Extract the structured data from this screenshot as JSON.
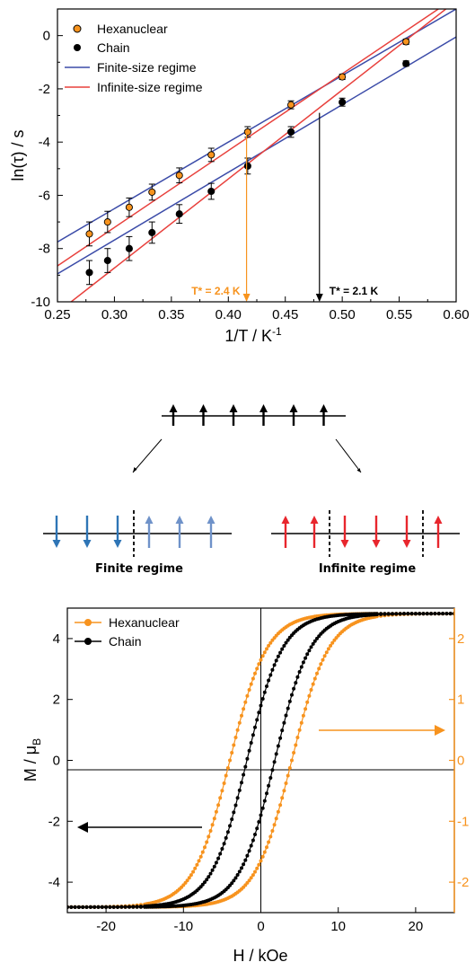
{
  "chart_data": [
    {
      "type": "scatter",
      "xlabel": "1/T / K",
      "xlabel_sup": "-1",
      "ylabel": "ln(τ) / s",
      "xlim": [
        0.25,
        0.6
      ],
      "ylim": [
        -10,
        1
      ],
      "xticks": [
        "0.25",
        "0.30",
        "0.35",
        "0.40",
        "0.45",
        "0.50",
        "0.55",
        "0.60"
      ],
      "yticks": [
        "-10",
        "-8",
        "-6",
        "-4",
        "-2",
        "0"
      ],
      "series": [
        {
          "name": "Hexanuclear",
          "color": "#f7931e",
          "x": [
            0.278,
            0.294,
            0.313,
            0.333,
            0.357,
            0.385,
            0.417,
            0.455,
            0.5,
            0.556
          ],
          "y": [
            -7.45,
            -7.0,
            -6.45,
            -5.88,
            -5.25,
            -4.48,
            -3.62,
            -2.6,
            -1.55,
            -0.23
          ],
          "err": [
            0.45,
            0.4,
            0.35,
            0.3,
            0.28,
            0.25,
            0.2,
            0.15,
            0.1,
            0.1
          ]
        },
        {
          "name": "Chain",
          "color": "#000000",
          "x": [
            0.278,
            0.294,
            0.313,
            0.333,
            0.357,
            0.385,
            0.417,
            0.455,
            0.5,
            0.556
          ],
          "y": [
            -8.9,
            -8.45,
            -8.0,
            -7.4,
            -6.7,
            -5.85,
            -4.9,
            -3.62,
            -2.5,
            -1.05
          ],
          "err": [
            0.45,
            0.45,
            0.45,
            0.4,
            0.35,
            0.3,
            0.3,
            0.2,
            0.15,
            0.1
          ]
        }
      ],
      "fits": [
        {
          "name": "Finite-size regime",
          "color": "#3b4ba8",
          "lines": [
            {
              "x": [
                0.25,
                0.6
              ],
              "y": [
                -7.75,
                1.0
              ]
            },
            {
              "x": [
                0.25,
                0.6
              ],
              "y": [
                -8.95,
                -0.05
              ]
            }
          ]
        },
        {
          "name": "Infinite-size regime",
          "color": "#e8403c",
          "lines": [
            {
              "x": [
                0.25,
                0.6
              ],
              "y": [
                -8.65,
                1.45
              ]
            },
            {
              "x": [
                0.25,
                0.6
              ],
              "y": [
                -10.4,
                1.3
              ]
            }
          ]
        }
      ],
      "annotations": [
        {
          "text": "T* = 2.4 K",
          "x": 0.416,
          "color": "#f7931e"
        },
        {
          "text": "T* = 2.1 K",
          "x": 0.48,
          "color": "#000000"
        }
      ]
    },
    {
      "type": "line",
      "xlabel": "H / kOe",
      "ylabel": "M / μ",
      "ylabel_sub": "B",
      "xlim": [
        -25,
        25
      ],
      "ylim": [
        -5,
        5
      ],
      "xticks": [
        "-20",
        "-10",
        "0",
        "10",
        "20"
      ],
      "yticks": [
        "-4",
        "-2",
        "0",
        "2",
        "4"
      ],
      "right_yticks": [
        "2",
        "1",
        "0",
        "-1",
        "-2"
      ],
      "right_axis_color": "#f7931e",
      "series": [
        {
          "name": "Hexanuclear",
          "color": "#f7931e",
          "coercive_field": 4.0,
          "remanence": 3.3,
          "saturation": 4.82
        },
        {
          "name": "Chain",
          "color": "#000000",
          "coercive_field": 1.8,
          "remanence": 1.8,
          "saturation": 4.82
        }
      ]
    }
  ],
  "diagram": {
    "finite_label": "Finite regime",
    "infinite_label": "Infinite regime",
    "top_spins": [
      "up",
      "up",
      "up",
      "up",
      "up",
      "up"
    ],
    "finite_spins": [
      "down",
      "down",
      "down",
      "up",
      "up",
      "up"
    ],
    "infinite_spins": [
      "up",
      "up",
      "down",
      "down",
      "down",
      "up"
    ],
    "colors": {
      "blue_down": "#2e75b6",
      "blue_up": "#6f92c9",
      "red": "#e8262d"
    }
  }
}
